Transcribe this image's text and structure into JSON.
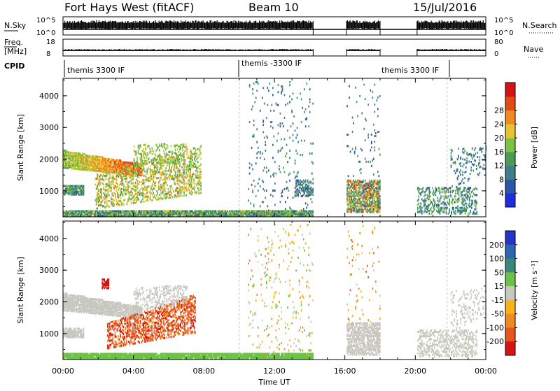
{
  "header": {
    "title": "Fort Hays West (fitACF)",
    "beam": "Beam 10",
    "date": "15/Jul/2016"
  },
  "top_panels": {
    "nsky_label": "N.Sky",
    "nsky_ticks": [
      "10^5",
      "10^0"
    ],
    "nsearch_label": "N.Search",
    "nsearch_ticks": [
      "10^5",
      "10^0"
    ],
    "freq_label_1": "Freq.",
    "freq_label_2": "[MHz]",
    "freq_ticks": [
      "18",
      "8"
    ],
    "nave_label": "Nave",
    "nave_ticks": [
      "80",
      "0"
    ],
    "cpid_label": "CPID",
    "cpid_entries": [
      "themis 3300 IF",
      "themis -3300 IF",
      "themis 3300 IF"
    ]
  },
  "chart_data": [
    {
      "type": "heatmap",
      "title": "",
      "xlabel": "Time UT",
      "ylabel": "Slant Range [km]",
      "xticks": [
        "00:00",
        "04:00",
        "08:00",
        "12:00",
        "16:00",
        "20:00",
        "00:00"
      ],
      "yticks": [
        "1000",
        "2000",
        "3000",
        "4000"
      ],
      "ylim": [
        180,
        4550
      ],
      "colorbar_label": "Power [dB]",
      "colorbar_ticks": [
        "4",
        "8",
        "12",
        "16",
        "20",
        "24",
        "28"
      ],
      "colors": [
        "#1f2be0",
        "#2a55a8",
        "#3d7f8c",
        "#4d9a55",
        "#7bc142",
        "#e9c230",
        "#f08a20",
        "#e24b17",
        "#d41414"
      ],
      "data_gaps_hours": [
        [
          14.2,
          16.1
        ],
        [
          18.0,
          20.1
        ]
      ]
    },
    {
      "type": "heatmap",
      "title": "",
      "xlabel": "Time UT",
      "ylabel": "Slant Range [km]",
      "xticks": [
        "00:00",
        "04:00",
        "08:00",
        "12:00",
        "16:00",
        "20:00",
        "00:00"
      ],
      "yticks": [
        "1000",
        "2000",
        "3000",
        "4000"
      ],
      "ylim": [
        180,
        4550
      ],
      "colorbar_label": "Velocity [m s⁻¹]",
      "colorbar_ticks": [
        "200",
        "100",
        "50",
        "15",
        "-15",
        "-50",
        "-100",
        "-200"
      ],
      "colors": [
        "#2533c8",
        "#2f66b2",
        "#39897a",
        "#6cc244",
        "#c8c8c0",
        "#f5b41e",
        "#f08a20",
        "#e8561a",
        "#d61414"
      ],
      "data_gaps_hours": [
        [
          14.2,
          16.1
        ],
        [
          18.0,
          20.1
        ]
      ]
    }
  ]
}
